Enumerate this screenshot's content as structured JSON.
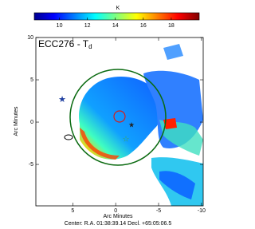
{
  "chart_data": {
    "type": "heatmap",
    "title": "ECC276 - T",
    "title_subscript": "d",
    "x_label": "Arc Minutes",
    "y_label": "Arc Minutes",
    "footer": "Center: R.A. 01:38:39.14   Decl. +65:05:06.5",
    "xlim": [
      9.3,
      -10.2
    ],
    "xticks": [
      5,
      0,
      -5,
      -10
    ],
    "ylim": [
      -9.9,
      10
    ],
    "yticks": [
      10,
      5,
      0,
      -5
    ],
    "colorbar": {
      "label": "K",
      "lim": [
        8.2,
        20
      ],
      "ticks": [
        10,
        12,
        14,
        16,
        18
      ],
      "colormap": "jet"
    }
  }
}
